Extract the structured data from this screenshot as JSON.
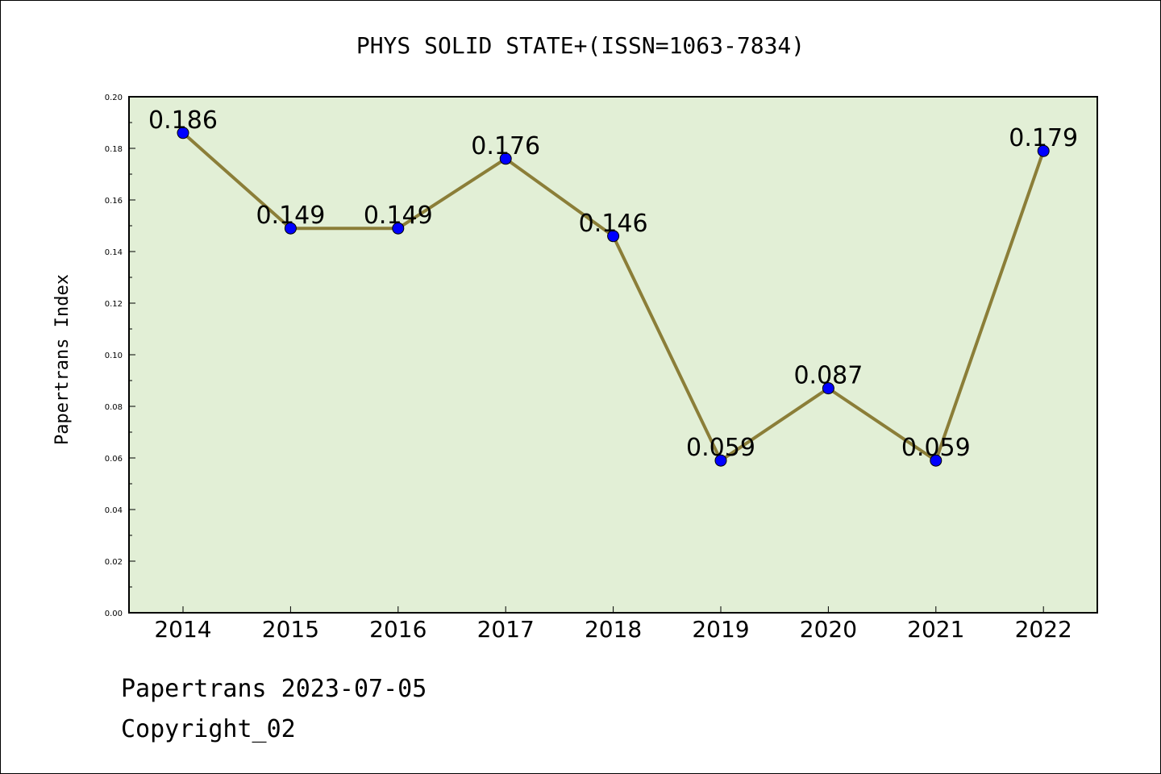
{
  "chart_data": {
    "type": "line",
    "title": "PHYS SOLID STATE+(ISSN=1063-7834)",
    "xlabel": "",
    "ylabel": "Papertrans Index",
    "categories": [
      "2014",
      "2015",
      "2016",
      "2017",
      "2018",
      "2019",
      "2020",
      "2021",
      "2022"
    ],
    "values": [
      0.186,
      0.149,
      0.149,
      0.176,
      0.146,
      0.059,
      0.087,
      0.059,
      0.179
    ],
    "data_labels": [
      "0.186",
      "0.149",
      "0.149",
      "0.176",
      "0.146",
      "0.059",
      "0.087",
      "0.059",
      "0.179"
    ],
    "ylim": [
      0,
      0.2
    ],
    "yticks": [
      "0.00",
      "0.02",
      "0.04",
      "0.06",
      "0.08",
      "0.10",
      "0.12",
      "0.14",
      "0.16",
      "0.18",
      "0.20"
    ],
    "grid": false,
    "colors": {
      "plot_background": "#e2efd6",
      "line": "#8b7e38",
      "marker": "#0000ff"
    }
  },
  "footer": {
    "line1": "Papertrans 2023-07-05",
    "line2": "Copyright_02"
  }
}
